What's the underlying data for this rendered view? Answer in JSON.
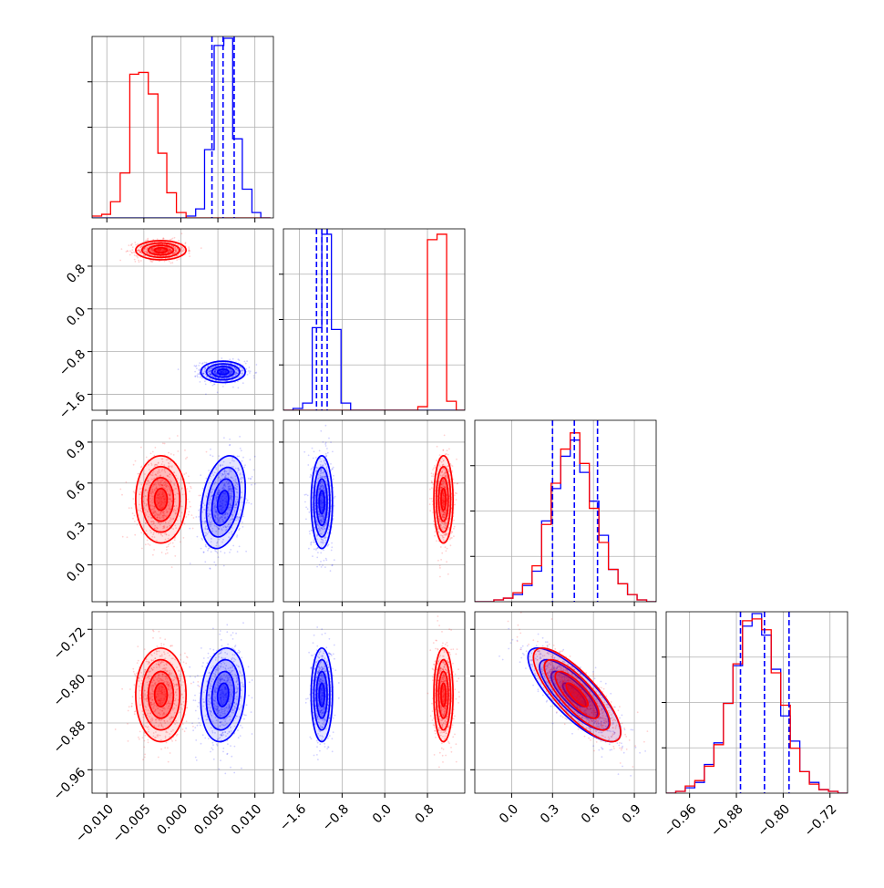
{
  "colors": {
    "series_a": "#0000ff",
    "series_b": "#ff0000",
    "grid": "#b0b0b0",
    "frame": "#000000"
  },
  "chart_data": {
    "type": "corner",
    "parameters": [
      {
        "range": [
          -0.012,
          0.0125
        ],
        "ticks": [
          -0.01,
          -0.005,
          0.0,
          0.005,
          0.01
        ],
        "tick_labels": [
          "−0.010",
          "−0.005",
          "0.000",
          "0.005",
          "0.010"
        ]
      },
      {
        "range": [
          -1.9,
          1.5
        ],
        "ticks": [
          -1.6,
          -0.8,
          0.0,
          0.8
        ],
        "tick_labels": [
          "−1.6",
          "−0.8",
          "0.0",
          "0.8"
        ]
      },
      {
        "range": [
          -0.27,
          1.06
        ],
        "ticks": [
          0.0,
          0.3,
          0.6,
          0.9
        ],
        "tick_labels": [
          "0.0",
          "0.3",
          "0.6",
          "0.9"
        ]
      },
      {
        "range": [
          -1.0,
          -0.69
        ],
        "ticks": [
          -0.96,
          -0.88,
          -0.8,
          -0.72
        ],
        "tick_labels": [
          "−0.96",
          "−0.88",
          "−0.80",
          "−0.72"
        ]
      }
    ],
    "series": [
      {
        "color": "#0000ff",
        "quantiles": [
          [
            0.0042,
            0.0057,
            0.0072
          ],
          [
            -1.28,
            -1.18,
            -1.08
          ],
          [
            0.3,
            0.46,
            0.63
          ],
          [
            -0.873,
            -0.832,
            -0.79
          ]
        ]
      },
      {
        "color": "#ff0000",
        "quantiles": null
      }
    ],
    "histograms": [
      {
        "param": 0,
        "bin_edges": [
          -0.012,
          -0.0107,
          -0.0095,
          -0.0082,
          -0.0069,
          -0.0057,
          -0.0044,
          -0.0031,
          -0.0019,
          -0.0006,
          0.0007,
          0.002,
          0.0032,
          0.0045,
          0.0058,
          0.007,
          0.0083,
          0.0096,
          0.0108,
          0.0121
        ],
        "blue": [
          0,
          0,
          0,
          0,
          0,
          0,
          0,
          0,
          0,
          0,
          0.01,
          0.05,
          0.38,
          0.96,
          1.0,
          0.44,
          0.16,
          0.03,
          0.0
        ],
        "red": [
          0.01,
          0.02,
          0.09,
          0.25,
          0.8,
          0.81,
          0.69,
          0.36,
          0.14,
          0.03,
          0.0,
          0,
          0,
          0,
          0,
          0,
          0,
          0,
          0
        ],
        "grid_values": [
          -0.01,
          -0.005,
          0.0,
          0.005,
          0.01
        ]
      },
      {
        "param": 1,
        "bin_edges": [
          -1.9,
          -1.72,
          -1.54,
          -1.36,
          -1.18,
          -1.0,
          -0.82,
          -0.64,
          -0.46,
          -0.28,
          -0.1,
          0.08,
          0.26,
          0.44,
          0.62,
          0.8,
          0.98,
          1.16,
          1.34,
          1.5
        ],
        "blue": [
          0,
          0.01,
          0.04,
          0.46,
          0.98,
          0.45,
          0.04,
          0,
          0,
          0,
          0,
          0,
          0,
          0,
          0,
          0,
          0,
          0,
          0
        ],
        "red": [
          0,
          0,
          0,
          0,
          0,
          0,
          0,
          0,
          0,
          0,
          0,
          0,
          0,
          0,
          0.02,
          0.95,
          0.98,
          0.05,
          0.0
        ],
        "grid_values": [
          -1.6,
          -0.8,
          0.0,
          0.8
        ]
      },
      {
        "param": 2,
        "bin_edges": [
          -0.27,
          -0.2,
          -0.13,
          -0.06,
          0.01,
          0.08,
          0.15,
          0.22,
          0.29,
          0.36,
          0.43,
          0.5,
          0.57,
          0.64,
          0.71,
          0.78,
          0.85,
          0.92,
          0.99,
          1.06
        ],
        "blue": [
          0.0,
          0,
          0.01,
          0.02,
          0.04,
          0.09,
          0.17,
          0.45,
          0.63,
          0.81,
          0.9,
          0.72,
          0.56,
          0.37,
          0.18,
          0.1,
          0.04,
          0.01,
          0.0
        ],
        "red": [
          0.0,
          0,
          0.01,
          0.02,
          0.05,
          0.1,
          0.2,
          0.43,
          0.66,
          0.85,
          0.94,
          0.77,
          0.52,
          0.33,
          0.18,
          0.1,
          0.04,
          0.01,
          0.0
        ],
        "grid_values": [
          0.0,
          0.3,
          0.6,
          0.9
        ]
      },
      {
        "param": 3,
        "bin_edges": [
          -1.0,
          -0.9837,
          -0.9674,
          -0.9511,
          -0.9347,
          -0.9184,
          -0.9021,
          -0.8858,
          -0.8695,
          -0.8532,
          -0.8368,
          -0.8205,
          -0.8042,
          -0.7879,
          -0.7716,
          -0.7553,
          -0.7389,
          -0.7226,
          -0.7063,
          -0.69
        ],
        "blue": [
          0.0,
          0.01,
          0.03,
          0.06,
          0.16,
          0.28,
          0.5,
          0.71,
          0.93,
          1.0,
          0.88,
          0.69,
          0.43,
          0.29,
          0.12,
          0.06,
          0.02,
          0.01,
          0.0
        ],
        "red": [
          0.0,
          0.01,
          0.04,
          0.07,
          0.15,
          0.27,
          0.5,
          0.72,
          0.96,
          0.97,
          0.91,
          0.67,
          0.49,
          0.25,
          0.12,
          0.05,
          0.02,
          0.01,
          0.0
        ],
        "grid_values": [
          -0.96,
          -0.88,
          -0.8,
          -0.72
        ]
      }
    ],
    "pair_distributions": [
      {
        "x_param": 0,
        "y_param": 1,
        "clusters": [
          {
            "series": 0,
            "mean": [
              0.0057,
              -1.18
            ],
            "sd": [
              0.0015,
              0.1
            ],
            "corr": 0.0
          },
          {
            "series": 1,
            "mean": [
              -0.0027,
              1.1
            ],
            "sd": [
              0.0017,
              0.09
            ],
            "corr": 0.0
          }
        ]
      },
      {
        "x_param": 0,
        "y_param": 2,
        "clusters": [
          {
            "series": 0,
            "mean": [
              0.0057,
              0.46
            ],
            "sd": [
              0.0015,
              0.17
            ],
            "corr": 0.3
          },
          {
            "series": 1,
            "mean": [
              -0.0027,
              0.48
            ],
            "sd": [
              0.0017,
              0.16
            ],
            "corr": 0.0
          }
        ]
      },
      {
        "x_param": 0,
        "y_param": 3,
        "clusters": [
          {
            "series": 0,
            "mean": [
              0.0057,
              -0.832
            ],
            "sd": [
              0.0015,
              0.04
            ],
            "corr": 0.15
          },
          {
            "series": 1,
            "mean": [
              -0.0027,
              -0.832
            ],
            "sd": [
              0.0017,
              0.04
            ],
            "corr": 0.0
          }
        ]
      },
      {
        "x_param": 1,
        "y_param": 2,
        "clusters": [
          {
            "series": 0,
            "mean": [
              -1.18,
              0.46
            ],
            "sd": [
              0.1,
              0.17
            ],
            "corr": 0.0
          },
          {
            "series": 1,
            "mean": [
              1.1,
              0.48
            ],
            "sd": [
              0.09,
              0.16
            ],
            "corr": 0.0
          }
        ]
      },
      {
        "x_param": 1,
        "y_param": 3,
        "clusters": [
          {
            "series": 0,
            "mean": [
              -1.18,
              -0.832
            ],
            "sd": [
              0.1,
              0.04
            ],
            "corr": 0.0
          },
          {
            "series": 1,
            "mean": [
              1.1,
              -0.832
            ],
            "sd": [
              0.09,
              0.04
            ],
            "corr": 0.0
          }
        ]
      },
      {
        "x_param": 2,
        "y_param": 3,
        "clusters": [
          {
            "series": 0,
            "mean": [
              0.46,
              -0.832
            ],
            "sd": [
              0.17,
              0.04
            ],
            "corr": -0.8
          },
          {
            "series": 1,
            "mean": [
              0.48,
              -0.832
            ],
            "sd": [
              0.16,
              0.04
            ],
            "corr": -0.8
          }
        ]
      }
    ],
    "contour_levels_sigma": [
      0.5,
      1.0,
      1.5,
      2.0
    ],
    "grid": true,
    "legend": null
  }
}
